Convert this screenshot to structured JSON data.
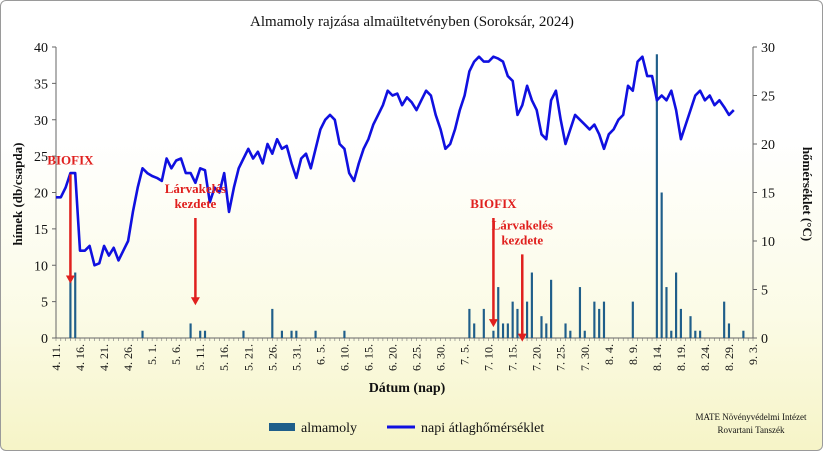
{
  "chart_data": {
    "type": "bar+line",
    "title": "Almamoly rajzása almaültetvényben (Soroksár, 2024)",
    "xlabel": "Dátum (nap)",
    "ylabel_left": "hímek (db/csapda)",
    "ylabel_right": "hőmérséklet (°C)",
    "ylim_left": [
      0,
      40
    ],
    "ylim_right": [
      0,
      30
    ],
    "yticks_left": [
      "0",
      "5",
      "10",
      "15",
      "20",
      "25",
      "30",
      "35",
      "40"
    ],
    "yticks_right": [
      "0",
      "5",
      "10",
      "15",
      "20",
      "25",
      "30"
    ],
    "x_start": "04-11",
    "x_end": "09-03",
    "x_tick_labels": [
      "4. 11.",
      "4. 16.",
      "4. 21.",
      "4. 26.",
      "5. 1.",
      "5. 6.",
      "5. 11.",
      "5. 16.",
      "5. 21.",
      "5. 26.",
      "5. 31.",
      "6. 5.",
      "6. 10.",
      "6. 15.",
      "6. 20.",
      "6. 25.",
      "6. 30.",
      "7. 5.",
      "7. 10.",
      "7. 15.",
      "7. 20.",
      "7. 25.",
      "7. 30.",
      "8. 4.",
      "8. 9.",
      "8. 14.",
      "8. 19.",
      "8. 24.",
      "8. 29.",
      "9. 3."
    ],
    "bars": {
      "name": "almamoly",
      "color": "#1f5e8a",
      "points": [
        {
          "date": "04-14",
          "value": 8
        },
        {
          "date": "04-15",
          "value": 9
        },
        {
          "date": "04-29",
          "value": 1
        },
        {
          "date": "05-09",
          "value": 2
        },
        {
          "date": "05-11",
          "value": 1
        },
        {
          "date": "05-12",
          "value": 1
        },
        {
          "date": "05-20",
          "value": 1
        },
        {
          "date": "05-26",
          "value": 4
        },
        {
          "date": "05-28",
          "value": 1
        },
        {
          "date": "05-30",
          "value": 1
        },
        {
          "date": "05-31",
          "value": 1
        },
        {
          "date": "06-04",
          "value": 1
        },
        {
          "date": "06-10",
          "value": 1
        },
        {
          "date": "07-06",
          "value": 4
        },
        {
          "date": "07-07",
          "value": 2
        },
        {
          "date": "07-09",
          "value": 4
        },
        {
          "date": "07-11",
          "value": 1
        },
        {
          "date": "07-12",
          "value": 7
        },
        {
          "date": "07-13",
          "value": 2
        },
        {
          "date": "07-14",
          "value": 2
        },
        {
          "date": "07-15",
          "value": 5
        },
        {
          "date": "07-16",
          "value": 4
        },
        {
          "date": "07-17",
          "value": 5
        },
        {
          "date": "07-18",
          "value": 5
        },
        {
          "date": "07-19",
          "value": 9
        },
        {
          "date": "07-21",
          "value": 3
        },
        {
          "date": "07-22",
          "value": 2
        },
        {
          "date": "07-23",
          "value": 8
        },
        {
          "date": "07-26",
          "value": 2
        },
        {
          "date": "07-27",
          "value": 1
        },
        {
          "date": "07-29",
          "value": 7
        },
        {
          "date": "07-30",
          "value": 1
        },
        {
          "date": "08-01",
          "value": 5
        },
        {
          "date": "08-02",
          "value": 4
        },
        {
          "date": "08-03",
          "value": 5
        },
        {
          "date": "08-09",
          "value": 5
        },
        {
          "date": "08-14",
          "value": 39
        },
        {
          "date": "08-15",
          "value": 20
        },
        {
          "date": "08-16",
          "value": 7
        },
        {
          "date": "08-17",
          "value": 1
        },
        {
          "date": "08-18",
          "value": 9
        },
        {
          "date": "08-19",
          "value": 4
        },
        {
          "date": "08-21",
          "value": 3
        },
        {
          "date": "08-22",
          "value": 1
        },
        {
          "date": "08-23",
          "value": 1
        },
        {
          "date": "08-28",
          "value": 5
        },
        {
          "date": "08-29",
          "value": 2
        },
        {
          "date": "09-01",
          "value": 1
        }
      ]
    },
    "line": {
      "name": "napi átlaghőmérséklet",
      "color": "#1010e0",
      "axis": "right",
      "values": [
        14.5,
        14.5,
        15.5,
        17.0,
        17.0,
        9.0,
        9.0,
        9.5,
        7.5,
        7.7,
        9.5,
        8.5,
        9.3,
        8.0,
        9.0,
        10.0,
        13.0,
        15.5,
        17.5,
        17.0,
        16.7,
        16.5,
        16.2,
        18.5,
        17.5,
        18.3,
        18.5,
        17.0,
        17.0,
        16.0,
        17.5,
        17.3,
        14.0,
        15.5,
        15.0,
        17.0,
        13.0,
        15.5,
        17.5,
        18.5,
        19.5,
        18.5,
        19.2,
        18.0,
        20.0,
        19.0,
        20.5,
        19.5,
        19.8,
        18.0,
        16.5,
        18.5,
        19.0,
        17.5,
        19.5,
        21.5,
        22.5,
        23.0,
        22.5,
        20.0,
        19.5,
        17.0,
        16.2,
        18.0,
        19.5,
        20.5,
        22.0,
        23.0,
        24.0,
        25.5,
        25.0,
        25.2,
        24.0,
        24.8,
        24.3,
        23.5,
        24.5,
        25.5,
        25.0,
        23.0,
        21.5,
        19.5,
        20.0,
        21.5,
        23.5,
        25.0,
        27.5,
        28.5,
        29.0,
        28.5,
        28.5,
        29.0,
        28.8,
        28.5,
        27.0,
        26.5,
        23.0,
        24.0,
        26.0,
        24.5,
        23.5,
        21.0,
        20.5,
        24.5,
        25.5,
        22.5,
        20.0,
        21.5,
        23.0,
        22.5,
        22.0,
        21.5,
        22.0,
        21.0,
        19.5,
        21.0,
        21.5,
        22.5,
        23.0,
        26.0,
        25.5,
        28.5,
        29.0,
        27.0,
        27.0,
        24.5,
        25.0,
        24.5,
        25.5,
        23.5,
        20.5,
        22.0,
        23.5,
        25.0,
        25.5,
        24.5,
        25.0,
        24.0,
        24.5,
        23.8,
        23.0,
        23.5
      ]
    },
    "annotations": [
      {
        "text": [
          "BIOFIX"
        ],
        "arrow_date": "04-14",
        "arrow_from_value": 22.5,
        "arrow_to_value": 7.5
      },
      {
        "text": [
          "Lárvakelés",
          "kezdete"
        ],
        "arrow_date": "05-10",
        "arrow_from_value": 16.5,
        "arrow_to_value": 4.5
      },
      {
        "text": [
          "BIOFIX"
        ],
        "arrow_date": "07-11",
        "arrow_from_value": 16.5,
        "arrow_to_value": 1.5
      },
      {
        "text": [
          "Lárvakelés",
          "kezdete"
        ],
        "arrow_date": "07-17",
        "arrow_from_value": 11.5,
        "arrow_to_value": -0.5
      }
    ],
    "legend": [
      {
        "label": "almamoly",
        "type": "bar",
        "color": "#1f5e8a"
      },
      {
        "label": "napi átlaghőmérséklet",
        "type": "line",
        "color": "#1010e0"
      }
    ],
    "legend_position": "bottom-center",
    "grid": false,
    "credit": [
      "MATE Növényvédelmi Intézet",
      "Rovartani Tanszék"
    ]
  }
}
